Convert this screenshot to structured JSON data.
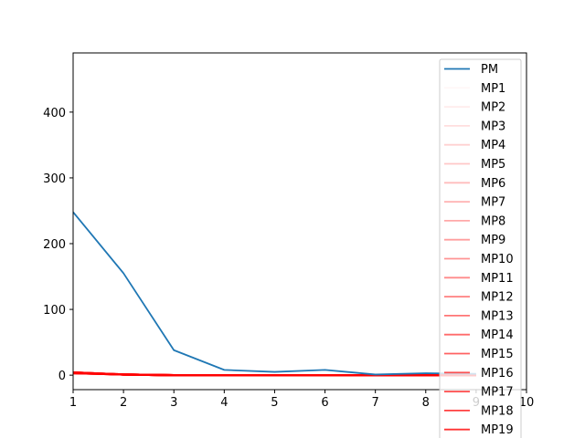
{
  "chart_data": {
    "type": "line",
    "title": "",
    "xlabel": "",
    "ylabel": "",
    "xlim": [
      1,
      10
    ],
    "ylim": [
      -22,
      490
    ],
    "x_ticks": [
      1,
      2,
      3,
      4,
      5,
      6,
      7,
      8,
      9,
      10
    ],
    "y_ticks": [
      0,
      100,
      200,
      300,
      400
    ],
    "grid": false,
    "legend_placement": "top-right",
    "series": [
      {
        "name": "PM",
        "color": "#1f77b4",
        "x": [
          1,
          2,
          3,
          4,
          5,
          6,
          7,
          8,
          9
        ],
        "values": [
          248,
          155,
          38,
          8,
          5,
          8,
          1,
          3,
          2
        ]
      },
      {
        "name": "MP1",
        "color": "#ff0000",
        "alpha": 0.03,
        "x": [
          1,
          2,
          3,
          4,
          5,
          6,
          7,
          8,
          9
        ],
        "values": [
          4,
          1,
          0,
          0,
          0,
          0,
          0,
          0,
          0
        ]
      },
      {
        "name": "MP2",
        "color": "#ff0000",
        "alpha": 0.08,
        "x": [
          1,
          2,
          3,
          4,
          5,
          6,
          7,
          8,
          9
        ],
        "values": [
          3,
          1,
          0,
          0,
          0,
          0,
          0,
          0,
          0
        ]
      },
      {
        "name": "MP3",
        "color": "#ff0000",
        "alpha": 0.13,
        "x": [
          1,
          2,
          3,
          4,
          5,
          6,
          7,
          8,
          9
        ],
        "values": [
          4,
          1,
          0,
          0,
          0,
          0,
          0,
          0,
          0
        ]
      },
      {
        "name": "MP4",
        "color": "#ff0000",
        "alpha": 0.18,
        "x": [
          1,
          2,
          3,
          4,
          5,
          6,
          7,
          8,
          9
        ],
        "values": [
          3,
          1,
          0,
          0,
          0,
          0,
          0,
          0,
          0
        ]
      },
      {
        "name": "MP5",
        "color": "#ff0000",
        "alpha": 0.22,
        "x": [
          1,
          2,
          3,
          4,
          5,
          6,
          7,
          8,
          9
        ],
        "values": [
          4,
          1,
          0,
          0,
          0,
          0,
          0,
          0,
          0
        ]
      },
      {
        "name": "MP6",
        "color": "#ff0000",
        "alpha": 0.26,
        "x": [
          1,
          2,
          3,
          4,
          5,
          6,
          7,
          8,
          9
        ],
        "values": [
          3,
          1,
          0,
          0,
          0,
          0,
          0,
          0,
          0
        ]
      },
      {
        "name": "MP7",
        "color": "#ff0000",
        "alpha": 0.3,
        "x": [
          1,
          2,
          3,
          4,
          5,
          6,
          7,
          8,
          9
        ],
        "values": [
          4,
          1,
          0,
          0,
          0,
          0,
          0,
          0,
          0
        ]
      },
      {
        "name": "MP8",
        "color": "#ff0000",
        "alpha": 0.34,
        "x": [
          1,
          2,
          3,
          4,
          5,
          6,
          7,
          8,
          9
        ],
        "values": [
          3,
          1,
          0,
          0,
          0,
          0,
          0,
          0,
          0
        ]
      },
      {
        "name": "MP9",
        "color": "#ff0000",
        "alpha": 0.38,
        "x": [
          1,
          2,
          3,
          4,
          5,
          6,
          7,
          8,
          9
        ],
        "values": [
          4,
          1,
          0,
          0,
          0,
          0,
          0,
          0,
          0
        ]
      },
      {
        "name": "MP10",
        "color": "#ff0000",
        "alpha": 0.42,
        "x": [
          1,
          2,
          3,
          4,
          5,
          6,
          7,
          8,
          9
        ],
        "values": [
          3,
          1,
          0,
          0,
          0,
          0,
          0,
          0,
          0
        ]
      },
      {
        "name": "MP11",
        "color": "#ff0000",
        "alpha": 0.46,
        "x": [
          1,
          2,
          3,
          4,
          5,
          6,
          7,
          8,
          9
        ],
        "values": [
          4,
          1,
          0,
          0,
          0,
          0,
          0,
          0,
          0
        ]
      },
      {
        "name": "MP12",
        "color": "#ff0000",
        "alpha": 0.5,
        "x": [
          1,
          2,
          3,
          4,
          5,
          6,
          7,
          8,
          9
        ],
        "values": [
          3,
          1,
          0,
          0,
          0,
          0,
          0,
          0,
          0
        ]
      },
      {
        "name": "MP13",
        "color": "#ff0000",
        "alpha": 0.54,
        "x": [
          1,
          2,
          3,
          4,
          5,
          6,
          7,
          8,
          9
        ],
        "values": [
          4,
          1,
          0,
          0,
          0,
          0,
          0,
          0,
          0
        ]
      },
      {
        "name": "MP14",
        "color": "#ff0000",
        "alpha": 0.58,
        "x": [
          1,
          2,
          3,
          4,
          5,
          6,
          7,
          8,
          9
        ],
        "values": [
          3,
          1,
          0,
          0,
          0,
          0,
          0,
          0,
          0
        ]
      },
      {
        "name": "MP15",
        "color": "#ff0000",
        "alpha": 0.62,
        "x": [
          1,
          2,
          3,
          4,
          5,
          6,
          7,
          8,
          9
        ],
        "values": [
          4,
          1,
          0,
          0,
          0,
          0,
          0,
          0,
          0
        ]
      },
      {
        "name": "MP16",
        "color": "#ff0000",
        "alpha": 0.66,
        "x": [
          1,
          2,
          3,
          4,
          5,
          6,
          7,
          8,
          9
        ],
        "values": [
          3,
          1,
          0,
          0,
          0,
          0,
          0,
          0,
          0
        ]
      },
      {
        "name": "MP17",
        "color": "#ff0000",
        "alpha": 0.7,
        "x": [
          1,
          2,
          3,
          4,
          5,
          6,
          7,
          8,
          9
        ],
        "values": [
          4,
          1,
          0,
          0,
          0,
          0,
          0,
          0,
          0
        ]
      },
      {
        "name": "MP18",
        "color": "#ff0000",
        "alpha": 0.75,
        "x": [
          1,
          2,
          3,
          4,
          5,
          6,
          7,
          8,
          9
        ],
        "values": [
          3,
          1,
          0,
          0,
          0,
          0,
          0,
          0,
          0
        ]
      },
      {
        "name": "MP19",
        "color": "#ff0000",
        "alpha": 0.8,
        "x": [
          1,
          2,
          3,
          4,
          5,
          6,
          7,
          8,
          9
        ],
        "values": [
          4,
          1,
          0,
          0,
          0,
          0,
          0,
          0,
          0
        ]
      }
    ]
  }
}
